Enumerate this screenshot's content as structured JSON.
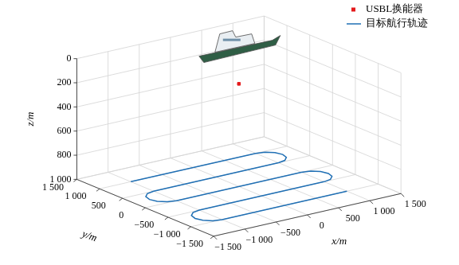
{
  "chart_data": {
    "type": "scatter3d",
    "xlabel": "x/m",
    "ylabel": "y/m",
    "zlabel": "z/m",
    "xlim": [
      -1500,
      1500
    ],
    "ylim": [
      -1500,
      1500
    ],
    "zlim": [
      0,
      1000
    ],
    "xticks": [
      {
        "value": -1500,
        "label": "−1 500"
      },
      {
        "value": -1000,
        "label": "−1 000"
      },
      {
        "value": -500,
        "label": "−500"
      },
      0,
      500,
      {
        "value": 1000,
        "label": "1 000"
      },
      {
        "value": 1500,
        "label": "1 500"
      }
    ],
    "yticks": [
      {
        "value": -1500,
        "label": "−1 500"
      },
      {
        "value": -1000,
        "label": "−1 000"
      },
      {
        "value": -500,
        "label": "−500"
      },
      0,
      500,
      {
        "value": 1000,
        "label": "1 000"
      },
      {
        "value": 1500,
        "label": "1 500"
      }
    ],
    "zticks": [
      0,
      200,
      400,
      600,
      800,
      {
        "value": 1000,
        "label": "1 000"
      }
    ],
    "grid": true,
    "legend": "upper right",
    "series": [
      {
        "name": "USBL换能器",
        "type": "scatter",
        "marker": "square",
        "color": "#e41a1c",
        "x": [
          0
        ],
        "y": [
          0
        ],
        "z": [
          150
        ]
      },
      {
        "name": "目标航行轨迹",
        "type": "line",
        "line_style": "solid",
        "color": "#1f6fb4",
        "x": [
          -1000,
          1000,
          1125,
          1217,
          1250,
          1217,
          1125,
          1000,
          -1000,
          -1125,
          -1217,
          -1250,
          -1217,
          -1125,
          -1000,
          1000,
          1125,
          1217,
          1250,
          1217,
          1125,
          1000,
          -1000,
          -1125,
          -1217,
          -1250,
          -1217,
          -1125,
          -1000,
          1000
        ],
        "y": [
          1000,
          1000,
          967,
          875,
          750,
          625,
          533,
          500,
          500,
          467,
          375,
          250,
          125,
          33,
          0,
          0,
          -33,
          -125,
          -250,
          -375,
          -467,
          -500,
          -500,
          -533,
          -625,
          -750,
          -875,
          -967,
          -1000,
          -1000
        ],
        "z": [
          1000,
          1000,
          1000,
          1000,
          1000,
          1000,
          1000,
          1000,
          1000,
          1000,
          1000,
          1000,
          1000,
          1000,
          1000,
          1000,
          1000,
          1000,
          1000,
          1000,
          1000,
          1000,
          1000,
          1000,
          1000,
          1000,
          1000,
          1000,
          1000,
          1000
        ]
      }
    ]
  }
}
